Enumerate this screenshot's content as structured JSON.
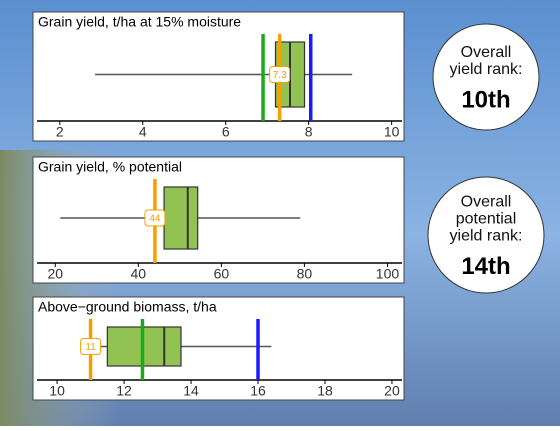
{
  "charts": [
    {
      "type": "box",
      "title": "Grain yield, t/ha at 15% moisture",
      "xlim": [
        1.45,
        10.25
      ],
      "xticks": [
        2,
        4,
        6,
        8,
        10
      ],
      "box": {
        "whisker_low": 2.85,
        "q1": 7.2,
        "median": 7.55,
        "q3": 7.9,
        "whisker_high": 9.05
      },
      "markers": [
        {
          "color": "#1aaa1a",
          "value": 6.9,
          "labeled": false
        },
        {
          "color": "#f5a000",
          "value": 7.3,
          "labeled": true
        },
        {
          "color": "#1a1aff",
          "value": 8.05,
          "labeled": false
        }
      ]
    },
    {
      "type": "box",
      "title": "Grain yield, % potential",
      "xlim": [
        15.6,
        103.5
      ],
      "xticks": [
        20,
        40,
        60,
        80,
        100
      ],
      "box": {
        "whisker_low": 21.2,
        "q1": 46.2,
        "median": 51.9,
        "q3": 54.3,
        "whisker_high": 79
      },
      "markers": [
        {
          "color": "#f5a000",
          "value": 44,
          "labeled": true
        }
      ]
    },
    {
      "type": "box",
      "title": "Above−ground biomass, t/ha",
      "xlim": [
        9.4,
        20.3
      ],
      "xticks": [
        10,
        12,
        14,
        16,
        18,
        20
      ],
      "box": {
        "whisker_low": 10.7,
        "q1": 11.5,
        "median": 13.2,
        "q3": 13.7,
        "whisker_high": 16.4
      },
      "markers": [
        {
          "color": "#f5a000",
          "value": 11,
          "labeled": true
        },
        {
          "color": "#1aaa1a",
          "value": 12.55,
          "labeled": false
        },
        {
          "color": "#1a1aff",
          "value": 16,
          "labeled": false
        }
      ]
    }
  ],
  "rank_cards": [
    {
      "lines": [
        "Overall",
        "yield rank:"
      ],
      "rank": "10th"
    },
    {
      "lines": [
        "Overall",
        "potential",
        "yield rank:"
      ],
      "rank": "14th"
    }
  ]
}
